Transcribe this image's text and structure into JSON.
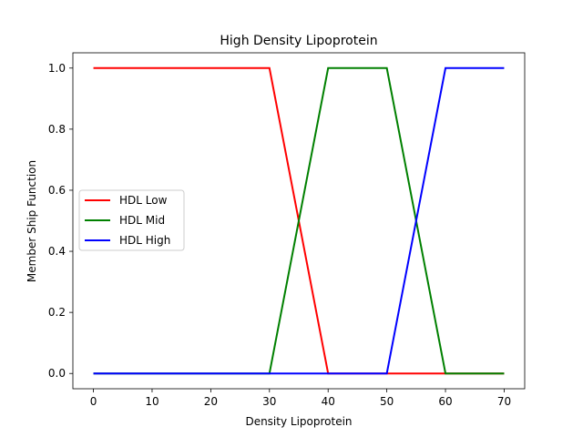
{
  "chart_data": {
    "type": "line",
    "title": "High Density Lipoprotein",
    "xlabel": "Density Lipoprotein",
    "ylabel": "Member Ship Function",
    "xlim": [
      -3.5,
      73.5
    ],
    "ylim": [
      -0.05,
      1.05
    ],
    "xticks": [
      0,
      10,
      20,
      30,
      40,
      50,
      60,
      70
    ],
    "yticks": [
      0.0,
      0.2,
      0.4,
      0.6,
      0.8,
      1.0
    ],
    "xtick_labels": [
      "0",
      "10",
      "20",
      "30",
      "40",
      "50",
      "60",
      "70"
    ],
    "ytick_labels": [
      "0.0",
      "0.2",
      "0.4",
      "0.6",
      "0.8",
      "1.0"
    ],
    "grid": false,
    "legend_position": "center-left",
    "series": [
      {
        "name": "HDL Low",
        "color": "#ff0000",
        "x": [
          0,
          30,
          40,
          70
        ],
        "y": [
          1,
          1,
          0,
          0
        ]
      },
      {
        "name": "HDL Mid",
        "color": "#008000",
        "x": [
          0,
          30,
          40,
          50,
          60,
          70
        ],
        "y": [
          0,
          0,
          1,
          1,
          0,
          0
        ]
      },
      {
        "name": "HDL High",
        "color": "#0000ff",
        "x": [
          0,
          50,
          60,
          70
        ],
        "y": [
          0,
          0,
          1,
          1
        ]
      }
    ]
  }
}
